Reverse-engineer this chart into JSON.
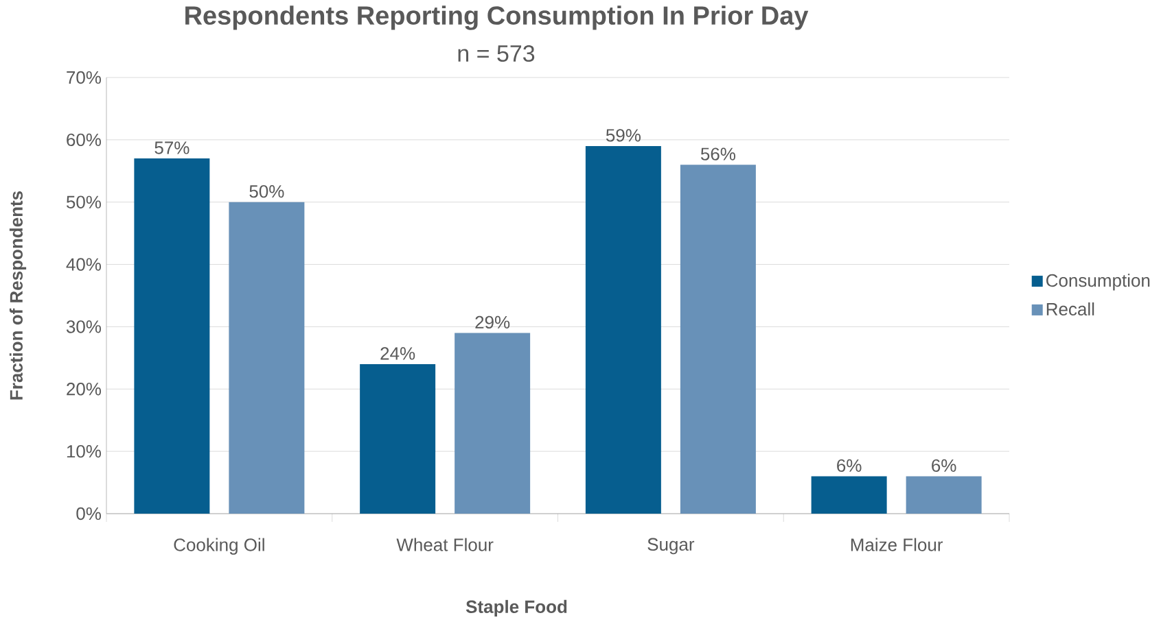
{
  "chart_data": {
    "type": "bar",
    "title": "Respondents Reporting Consumption In Prior Day",
    "subtitle": "n = 573",
    "xlabel": "Staple Food",
    "ylabel": "Fraction of Respondents",
    "categories": [
      "Cooking Oil",
      "Wheat Flour",
      "Sugar",
      "Maize Flour"
    ],
    "series": [
      {
        "name": "Consumption",
        "color": "#065e8f",
        "values": [
          57,
          24,
          59,
          6
        ],
        "value_labels": [
          "57%",
          "24%",
          "59%",
          "6%"
        ]
      },
      {
        "name": "Recall",
        "color": "#6891b8",
        "values": [
          50,
          29,
          56,
          6
        ],
        "value_labels": [
          "50%",
          "29%",
          "56%",
          "6%"
        ]
      }
    ],
    "ylim": [
      0,
      70
    ],
    "yticks": [
      {
        "value": 0,
        "label": "0%"
      },
      {
        "value": 10,
        "label": "10%"
      },
      {
        "value": 20,
        "label": "20%"
      },
      {
        "value": 30,
        "label": "30%"
      },
      {
        "value": 40,
        "label": "40%"
      },
      {
        "value": 50,
        "label": "50%"
      },
      {
        "value": 60,
        "label": "60%"
      },
      {
        "value": 70,
        "label": "70%"
      }
    ],
    "grid": "y",
    "legend": "right"
  }
}
